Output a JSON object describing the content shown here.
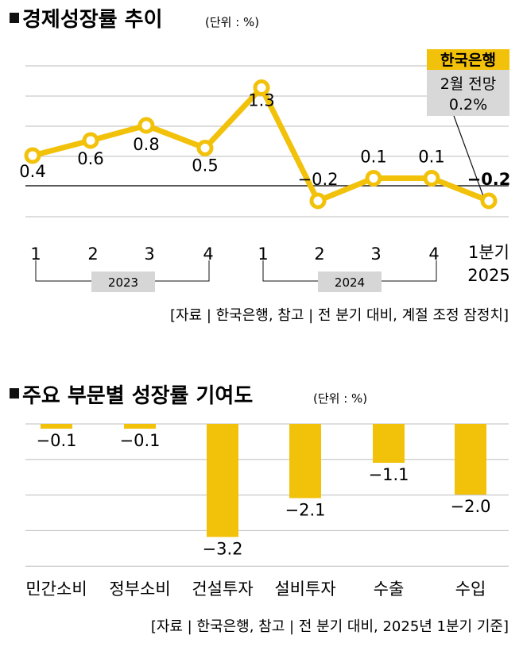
{
  "charts": [
    {
      "title": "경제성장률 추이",
      "unit": "(단위 : %)",
      "source": "[자료 | 한국은행, 참고 | 전 분기 대비, 계절 조정 잠정치]",
      "callout": {
        "badge": "한국은행",
        "line1": "2월 전망",
        "line2": "0.2%"
      },
      "year_labels": [
        "2023",
        "2024"
      ],
      "last_label_line1": "1분기",
      "last_label_line2": "2025"
    },
    {
      "title": "주요 부문별 성장률 기여도",
      "unit": "(단위 : %)",
      "source": "[자료 | 한국은행, 참고 | 전 분기 대비, 2025년 1분기 기준]"
    }
  ],
  "colors": {
    "accent": "#f2c10a",
    "callout_bg": "#d8d8d8",
    "year_bg": "#d6d6d6",
    "grid": "#bdbdbd",
    "zero_line": "#222222"
  },
  "chart_data": [
    {
      "type": "line",
      "title": "경제성장률 추이",
      "x": [
        "1",
        "2",
        "3",
        "4",
        "1",
        "2",
        "3",
        "4",
        "1분기 2025"
      ],
      "x_groups": [
        {
          "label": "2023",
          "members": [
            "1",
            "2",
            "3",
            "4"
          ]
        },
        {
          "label": "2024",
          "members": [
            "1",
            "2",
            "3",
            "4"
          ]
        }
      ],
      "series": [
        {
          "values": [
            0.4,
            0.6,
            0.8,
            0.5,
            1.3,
            -0.2,
            0.1,
            0.1,
            -0.2
          ]
        }
      ],
      "value_labels": [
        "0.4",
        "0.6",
        "0.8",
        "0.5",
        "1.3",
        "−0.2",
        "0.1",
        "0.1",
        "−0.2"
      ],
      "ylim": [
        -0.4,
        1.6
      ],
      "grid": true
    },
    {
      "type": "bar",
      "title": "주요 부문별 성장률 기여도",
      "categories": [
        "민간소비",
        "정부소비",
        "건설투자",
        "설비투자",
        "수출",
        "수입"
      ],
      "values": [
        -0.1,
        -0.1,
        -3.2,
        -2.1,
        -1.1,
        -2.0
      ],
      "value_labels": [
        "−0.1",
        "−0.1",
        "−3.2",
        "−2.1",
        "−1.1",
        "−2.0"
      ],
      "ylim": [
        -3.6,
        0
      ],
      "grid": true
    }
  ]
}
